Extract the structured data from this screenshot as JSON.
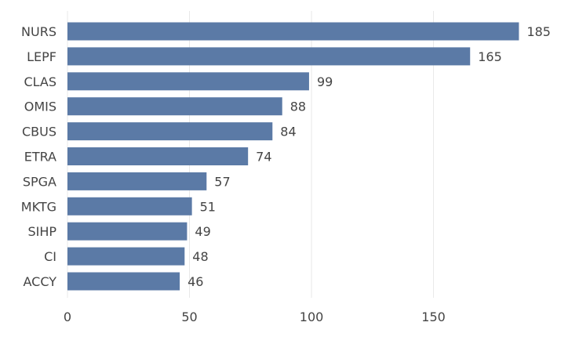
{
  "chart_data": {
    "type": "bar",
    "orientation": "horizontal",
    "categories": [
      "NURS",
      "LEPF",
      "CLAS",
      "OMIS",
      "CBUS",
      "ETRA",
      "SPGA",
      "MKTG",
      "SIHP",
      "CI",
      "ACCY"
    ],
    "values": [
      185,
      165,
      99,
      88,
      84,
      74,
      57,
      51,
      49,
      48,
      46
    ],
    "title": "",
    "xlabel": "",
    "ylabel": "",
    "xlim": [
      0,
      190
    ],
    "xticks": [
      0,
      50,
      100,
      150
    ],
    "grid": true,
    "bar_color": "#5b7aa6",
    "data_labels": true
  }
}
